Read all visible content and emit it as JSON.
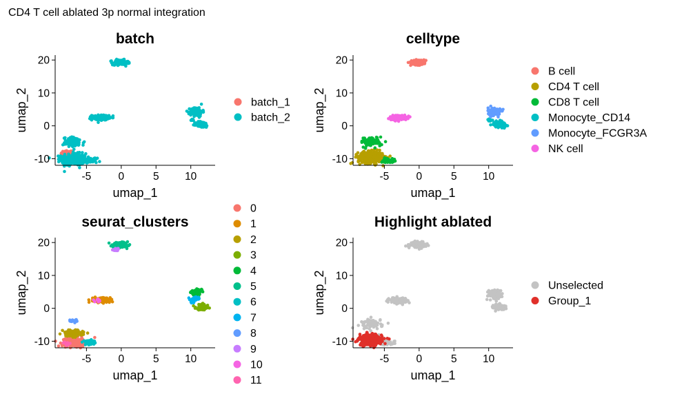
{
  "figure_title": "CD4 T cell ablated 3p normal integration",
  "chart_data": [
    {
      "type": "scatter",
      "title": "batch",
      "xlabel": "umap_1",
      "ylabel": "umap_2",
      "xlim": [
        -9.5,
        13.5
      ],
      "ylim": [
        -12,
        21.5
      ],
      "xticks": [
        -5,
        0,
        5,
        10
      ],
      "yticks": [
        -10,
        0,
        10,
        20
      ],
      "grid": false,
      "legend": "right",
      "series": [
        {
          "name": "batch_1",
          "color": "#F8766D",
          "clusters": [
            [
              -7.8,
              -8.5,
              0.8,
              1.0,
              60
            ],
            [
              -7.6,
              -10.8,
              0.5,
              0.5,
              20
            ]
          ]
        },
        {
          "name": "batch_2",
          "color": "#00BFC4",
          "clusters": [
            [
              -6.8,
              -10.2,
              1.6,
              1.6,
              320
            ],
            [
              -4.5,
              -10.5,
              0.9,
              0.6,
              60
            ],
            [
              -6.8,
              -5.0,
              1.4,
              1.4,
              80
            ],
            [
              -3.0,
              2.5,
              1.1,
              0.7,
              140
            ],
            [
              -0.1,
              19.3,
              1.0,
              0.7,
              150
            ],
            [
              10.8,
              4.3,
              0.8,
              1.2,
              150
            ],
            [
              11.6,
              0.4,
              0.8,
              0.8,
              100
            ],
            [
              10.2,
              1.8,
              0.3,
              0.3,
              10
            ]
          ]
        }
      ]
    },
    {
      "type": "scatter",
      "title": "celltype",
      "xlabel": "umap_1",
      "ylabel": "umap_2",
      "xlim": [
        -9.5,
        13.5
      ],
      "ylim": [
        -12,
        21.5
      ],
      "xticks": [
        -5,
        0,
        5,
        10
      ],
      "yticks": [
        -10,
        0,
        10,
        20
      ],
      "grid": false,
      "legend": "right",
      "series": [
        {
          "name": "B cell",
          "color": "#F8766D",
          "clusters": [
            [
              -0.1,
              19.3,
              1.0,
              0.7,
              150
            ]
          ]
        },
        {
          "name": "CD4 T cell",
          "color": "#B79F00",
          "clusters": [
            [
              -7.0,
              -9.6,
              1.6,
              1.6,
              340
            ]
          ]
        },
        {
          "name": "CD8 T cell",
          "color": "#00BA38",
          "clusters": [
            [
              -6.8,
              -4.8,
              1.4,
              1.4,
              70
            ],
            [
              -4.5,
              -10.5,
              0.9,
              0.6,
              50
            ]
          ]
        },
        {
          "name": "Monocyte_CD14",
          "color": "#00BFC4",
          "clusters": [
            [
              11.6,
              0.4,
              0.8,
              0.8,
              110
            ],
            [
              10.2,
              1.8,
              0.3,
              0.3,
              10
            ]
          ]
        },
        {
          "name": "Monocyte_FCGR3A",
          "color": "#619CFF",
          "clusters": [
            [
              10.8,
              4.3,
              0.8,
              1.1,
              140
            ]
          ]
        },
        {
          "name": "NK cell",
          "color": "#F564E3",
          "clusters": [
            [
              -3.0,
              2.5,
              1.1,
              0.7,
              130
            ]
          ]
        }
      ]
    },
    {
      "type": "scatter",
      "title": "seurat_clusters",
      "xlabel": "umap_1",
      "ylabel": "umap_2",
      "xlim": [
        -9.5,
        13.5
      ],
      "ylim": [
        -12,
        21.5
      ],
      "xticks": [
        -5,
        0,
        5,
        10
      ],
      "yticks": [
        -10,
        0,
        10,
        20
      ],
      "grid": false,
      "legend": "right",
      "series": [
        {
          "name": "0",
          "color": "#F8766D",
          "clusters": [
            [
              -6.8,
              -10.3,
              1.5,
              1.2,
              260
            ]
          ]
        },
        {
          "name": "1",
          "color": "#DE8C00",
          "clusters": [
            [
              -2.8,
              2.5,
              1.1,
              0.7,
              130
            ]
          ]
        },
        {
          "name": "2",
          "color": "#B79F00",
          "clusters": [
            [
              -7.0,
              -7.6,
              1.3,
              0.9,
              120
            ]
          ]
        },
        {
          "name": "3",
          "color": "#7CAE00",
          "clusters": [
            [
              11.6,
              0.4,
              0.8,
              0.8,
              100
            ]
          ]
        },
        {
          "name": "4",
          "color": "#00BA38",
          "clusters": [
            [
              10.8,
              4.8,
              0.7,
              0.8,
              100
            ]
          ]
        },
        {
          "name": "5",
          "color": "#00C08B",
          "clusters": [
            [
              -0.1,
              19.3,
              1.0,
              0.6,
              140
            ]
          ]
        },
        {
          "name": "6",
          "color": "#00BFC4",
          "clusters": [
            [
              -4.5,
              -10.5,
              0.9,
              0.6,
              50
            ]
          ]
        },
        {
          "name": "7",
          "color": "#00B4F0",
          "clusters": [
            [
              10.6,
              2.9,
              0.6,
              0.5,
              40
            ],
            [
              10.2,
              1.8,
              0.3,
              0.3,
              10
            ]
          ]
        },
        {
          "name": "8",
          "color": "#619CFF",
          "clusters": [
            [
              -6.8,
              -3.8,
              0.6,
              0.4,
              20
            ]
          ]
        },
        {
          "name": "9",
          "color": "#C77CFF",
          "clusters": [
            [
              -0.7,
              17.8,
              0.5,
              0.4,
              20
            ]
          ]
        },
        {
          "name": "10",
          "color": "#F564E3",
          "clusters": [
            [
              -3.3,
              2.3,
              0.5,
              0.4,
              10
            ]
          ]
        },
        {
          "name": "11",
          "color": "#FF64B0",
          "clusters": [
            [
              -7.7,
              -10.8,
              0.4,
              0.4,
              15
            ]
          ]
        }
      ]
    },
    {
      "type": "scatter",
      "title": "Highlight ablated",
      "xlabel": "umap_1",
      "ylabel": "umap_2",
      "xlim": [
        -9.5,
        13.5
      ],
      "ylim": [
        -12,
        21.5
      ],
      "xticks": [
        -5,
        0,
        5,
        10
      ],
      "yticks": [
        -10,
        0,
        10,
        20
      ],
      "grid": false,
      "legend": "right",
      "series": [
        {
          "name": "Unselected",
          "color": "#C3C3C3",
          "clusters": [
            [
              -0.1,
              19.3,
              1.0,
              0.7,
              150
            ],
            [
              -3.0,
              2.5,
              1.1,
              0.7,
              140
            ],
            [
              10.8,
              4.3,
              0.8,
              1.2,
              150
            ],
            [
              11.6,
              0.4,
              0.8,
              0.8,
              100
            ],
            [
              -6.8,
              -4.8,
              1.4,
              1.4,
              70
            ],
            [
              -4.5,
              -10.5,
              0.9,
              0.6,
              50
            ],
            [
              -5.8,
              -9.0,
              0.8,
              0.8,
              40
            ]
          ]
        },
        {
          "name": "Group_1",
          "color": "#E0302A",
          "clusters": [
            [
              -7.0,
              -9.6,
              1.5,
              1.5,
              330
            ]
          ]
        }
      ]
    }
  ]
}
